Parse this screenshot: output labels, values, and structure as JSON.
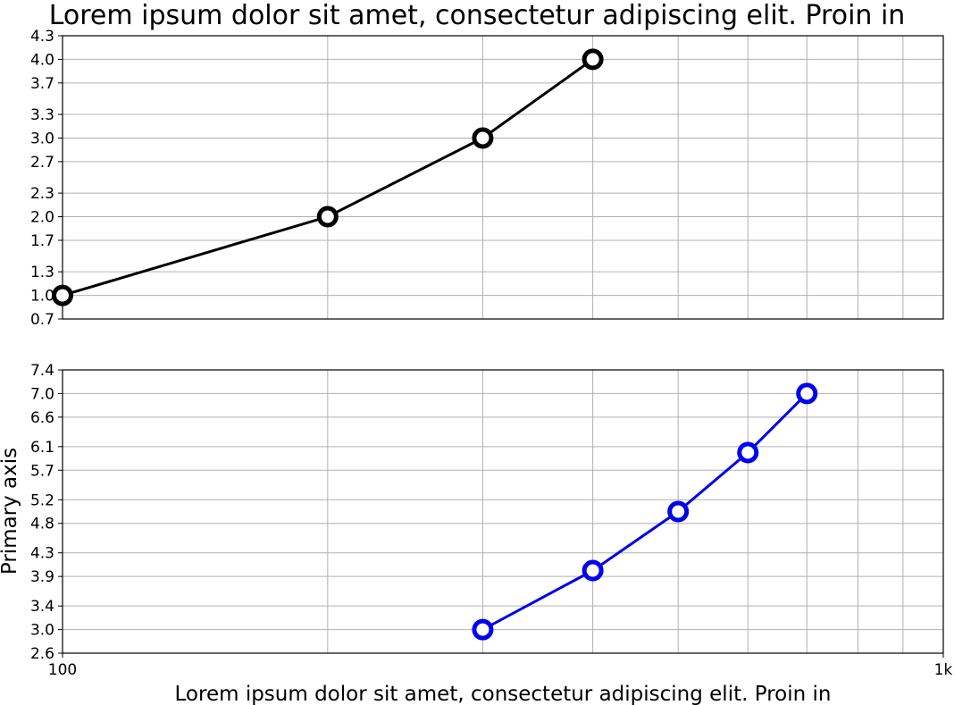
{
  "chart_data": [
    {
      "type": "line",
      "title": "Lorem ipsum dolor sit amet, consectetur adipiscing elit. Proin in",
      "xlabel": "",
      "ylabel": "",
      "xscale": "log",
      "xlim": [
        100,
        1000
      ],
      "ylim": [
        0.7,
        4.3
      ],
      "yticks": [
        "0.7",
        "1.0",
        "1.3",
        "1.7",
        "2.0",
        "2.3",
        "2.7",
        "3.0",
        "3.3",
        "3.7",
        "4.0",
        "4.3"
      ],
      "grid": true,
      "series": [
        {
          "x": [
            100,
            200,
            300,
            400
          ],
          "y": [
            1,
            2,
            3,
            4
          ],
          "color": "#000000",
          "marker": "open-circle"
        }
      ]
    },
    {
      "type": "line",
      "title": "",
      "xlabel": "Lorem ipsum dolor sit amet, consectetur adipiscing elit. Proin in",
      "ylabel": "Primary axis",
      "xscale": "log",
      "xlim": [
        100,
        1000
      ],
      "ylim": [
        2.6,
        7.4
      ],
      "xticks": [
        "100",
        "1k"
      ],
      "yticks": [
        "2.6",
        "3.0",
        "3.4",
        "3.9",
        "4.3",
        "4.8",
        "5.2",
        "5.7",
        "6.1",
        "6.6",
        "7.0",
        "7.4"
      ],
      "grid": true,
      "series": [
        {
          "x": [
            300,
            400,
            500,
            600,
            700
          ],
          "y": [
            3,
            4,
            5,
            6,
            7
          ],
          "color": "#0000ee",
          "marker": "open-circle"
        }
      ]
    }
  ]
}
